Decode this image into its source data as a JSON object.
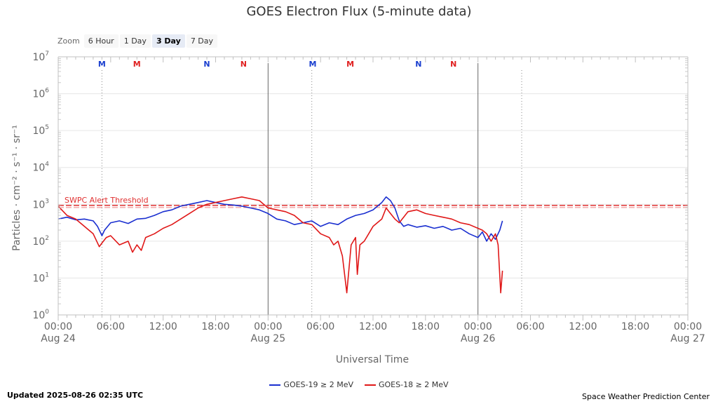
{
  "chart_data": {
    "type": "line",
    "title": "GOES Electron Flux (5-minute data)",
    "xlabel": "Universal Time",
    "ylabel": "Particles · cm⁻² · s⁻¹ · sr⁻¹",
    "x_unit": "hours since 2025-08-24 00:00 UTC",
    "xlim": [
      0,
      72
    ],
    "ylim_log10": [
      0,
      7
    ],
    "y_ticks": [
      {
        "exp": 0,
        "base": "10",
        "pow": "0"
      },
      {
        "exp": 1,
        "base": "10",
        "pow": "1"
      },
      {
        "exp": 2,
        "base": "10",
        "pow": "2"
      },
      {
        "exp": 3,
        "base": "10",
        "pow": "3"
      },
      {
        "exp": 4,
        "base": "10",
        "pow": "4"
      },
      {
        "exp": 5,
        "base": "10",
        "pow": "5"
      },
      {
        "exp": 6,
        "base": "10",
        "pow": "6"
      },
      {
        "exp": 7,
        "base": "10",
        "pow": "7"
      }
    ],
    "x_ticks": [
      {
        "hour": 0,
        "time": "00:00",
        "date": "Aug 24"
      },
      {
        "hour": 6,
        "time": "06:00",
        "date": ""
      },
      {
        "hour": 12,
        "time": "12:00",
        "date": ""
      },
      {
        "hour": 18,
        "time": "18:00",
        "date": ""
      },
      {
        "hour": 24,
        "time": "00:00",
        "date": "Aug 25"
      },
      {
        "hour": 30,
        "time": "06:00",
        "date": ""
      },
      {
        "hour": 36,
        "time": "12:00",
        "date": ""
      },
      {
        "hour": 42,
        "time": "18:00",
        "date": ""
      },
      {
        "hour": 48,
        "time": "00:00",
        "date": "Aug 26"
      },
      {
        "hour": 54,
        "time": "06:00",
        "date": ""
      },
      {
        "hour": 60,
        "time": "12:00",
        "date": ""
      },
      {
        "hour": 66,
        "time": "18:00",
        "date": ""
      },
      {
        "hour": 72,
        "time": "00:00",
        "date": "Aug 27"
      }
    ],
    "day_boundaries": [
      24,
      48
    ],
    "current_time_hour": 5,
    "local_noon_lines": [
      5,
      29,
      53
    ],
    "threshold": {
      "value_log10": 2.97,
      "label": "SWPC Alert Threshold",
      "color": "#e03030"
    },
    "markers": [
      {
        "hour": 5,
        "label": "M",
        "color": "#1a3fcf"
      },
      {
        "hour": 9,
        "label": "M",
        "color": "#e02020"
      },
      {
        "hour": 17,
        "label": "N",
        "color": "#1a3fcf"
      },
      {
        "hour": 21.2,
        "label": "N",
        "color": "#e02020"
      },
      {
        "hour": 29.1,
        "label": "M",
        "color": "#1a3fcf"
      },
      {
        "hour": 33.4,
        "label": "M",
        "color": "#e02020"
      },
      {
        "hour": 41.2,
        "label": "N",
        "color": "#1a3fcf"
      },
      {
        "hour": 45.2,
        "label": "N",
        "color": "#e02020"
      }
    ],
    "series": [
      {
        "name": "GOES-19 ≥ 2 MeV",
        "color": "#1a2fd0",
        "x": [
          0,
          1,
          2,
          3,
          4,
          4.5,
          5,
          5.3,
          6,
          7,
          8,
          9,
          10,
          11,
          12,
          13,
          14,
          15,
          16,
          17,
          18,
          19,
          20,
          21,
          22,
          23,
          24,
          25,
          26,
          27,
          28,
          29,
          30,
          31,
          32,
          33,
          34,
          35,
          36,
          37,
          37.5,
          38,
          38.5,
          39,
          39.5,
          40,
          41,
          42,
          43,
          44,
          45,
          46,
          47,
          48,
          48.5,
          49,
          49.5,
          50,
          50.5,
          50.8
        ],
        "y_log10": [
          2.6,
          2.65,
          2.58,
          2.6,
          2.55,
          2.4,
          2.15,
          2.3,
          2.5,
          2.55,
          2.48,
          2.6,
          2.62,
          2.7,
          2.8,
          2.85,
          2.95,
          3.0,
          3.05,
          3.1,
          3.05,
          3.0,
          2.98,
          2.95,
          2.9,
          2.85,
          2.75,
          2.6,
          2.55,
          2.45,
          2.5,
          2.55,
          2.4,
          2.5,
          2.45,
          2.6,
          2.7,
          2.75,
          2.85,
          3.05,
          3.2,
          3.1,
          2.9,
          2.55,
          2.4,
          2.45,
          2.38,
          2.42,
          2.35,
          2.4,
          2.3,
          2.35,
          2.2,
          2.1,
          2.25,
          2.0,
          2.2,
          2.05,
          2.3,
          2.55
        ]
      },
      {
        "name": "GOES-18 ≥ 2 MeV",
        "color": "#e01818",
        "x": [
          0,
          1,
          2,
          3,
          4,
          4.7,
          5,
          5.5,
          6,
          7,
          8,
          8.5,
          9,
          9.5,
          10,
          11,
          12,
          13,
          14,
          15,
          16,
          17,
          18,
          19,
          20,
          21,
          22,
          23,
          24,
          25,
          26,
          27,
          28,
          29,
          30,
          31,
          31.5,
          32,
          32.5,
          33,
          33.5,
          34,
          34.2,
          34.5,
          35,
          35.5,
          36,
          37,
          37.5,
          38,
          38.5,
          39,
          40,
          41,
          42,
          43,
          44,
          45,
          46,
          47,
          48,
          48.5,
          49,
          49.5,
          50,
          50.3,
          50.6,
          50.8
        ],
        "y_log10": [
          2.95,
          2.7,
          2.6,
          2.4,
          2.2,
          1.85,
          1.95,
          2.1,
          2.15,
          1.9,
          2.0,
          1.7,
          1.9,
          1.75,
          2.1,
          2.2,
          2.35,
          2.45,
          2.6,
          2.75,
          2.9,
          3.0,
          3.05,
          3.1,
          3.15,
          3.2,
          3.15,
          3.1,
          2.9,
          2.85,
          2.8,
          2.7,
          2.5,
          2.45,
          2.2,
          2.1,
          1.9,
          2.0,
          1.6,
          0.6,
          1.9,
          2.1,
          1.1,
          1.9,
          2.0,
          2.2,
          2.4,
          2.6,
          2.9,
          2.75,
          2.6,
          2.5,
          2.8,
          2.85,
          2.75,
          2.7,
          2.65,
          2.6,
          2.5,
          2.45,
          2.35,
          2.3,
          2.2,
          2.0,
          2.2,
          1.9,
          0.6,
          1.2
        ]
      }
    ]
  },
  "zoom": {
    "label": "Zoom",
    "options": [
      "6 Hour",
      "1 Day",
      "3 Day",
      "7 Day"
    ],
    "active_option": "3 Day"
  },
  "footer": {
    "updated": "Updated 2025-08-26 02:35 UTC",
    "credit": "Space Weather Prediction Center"
  }
}
